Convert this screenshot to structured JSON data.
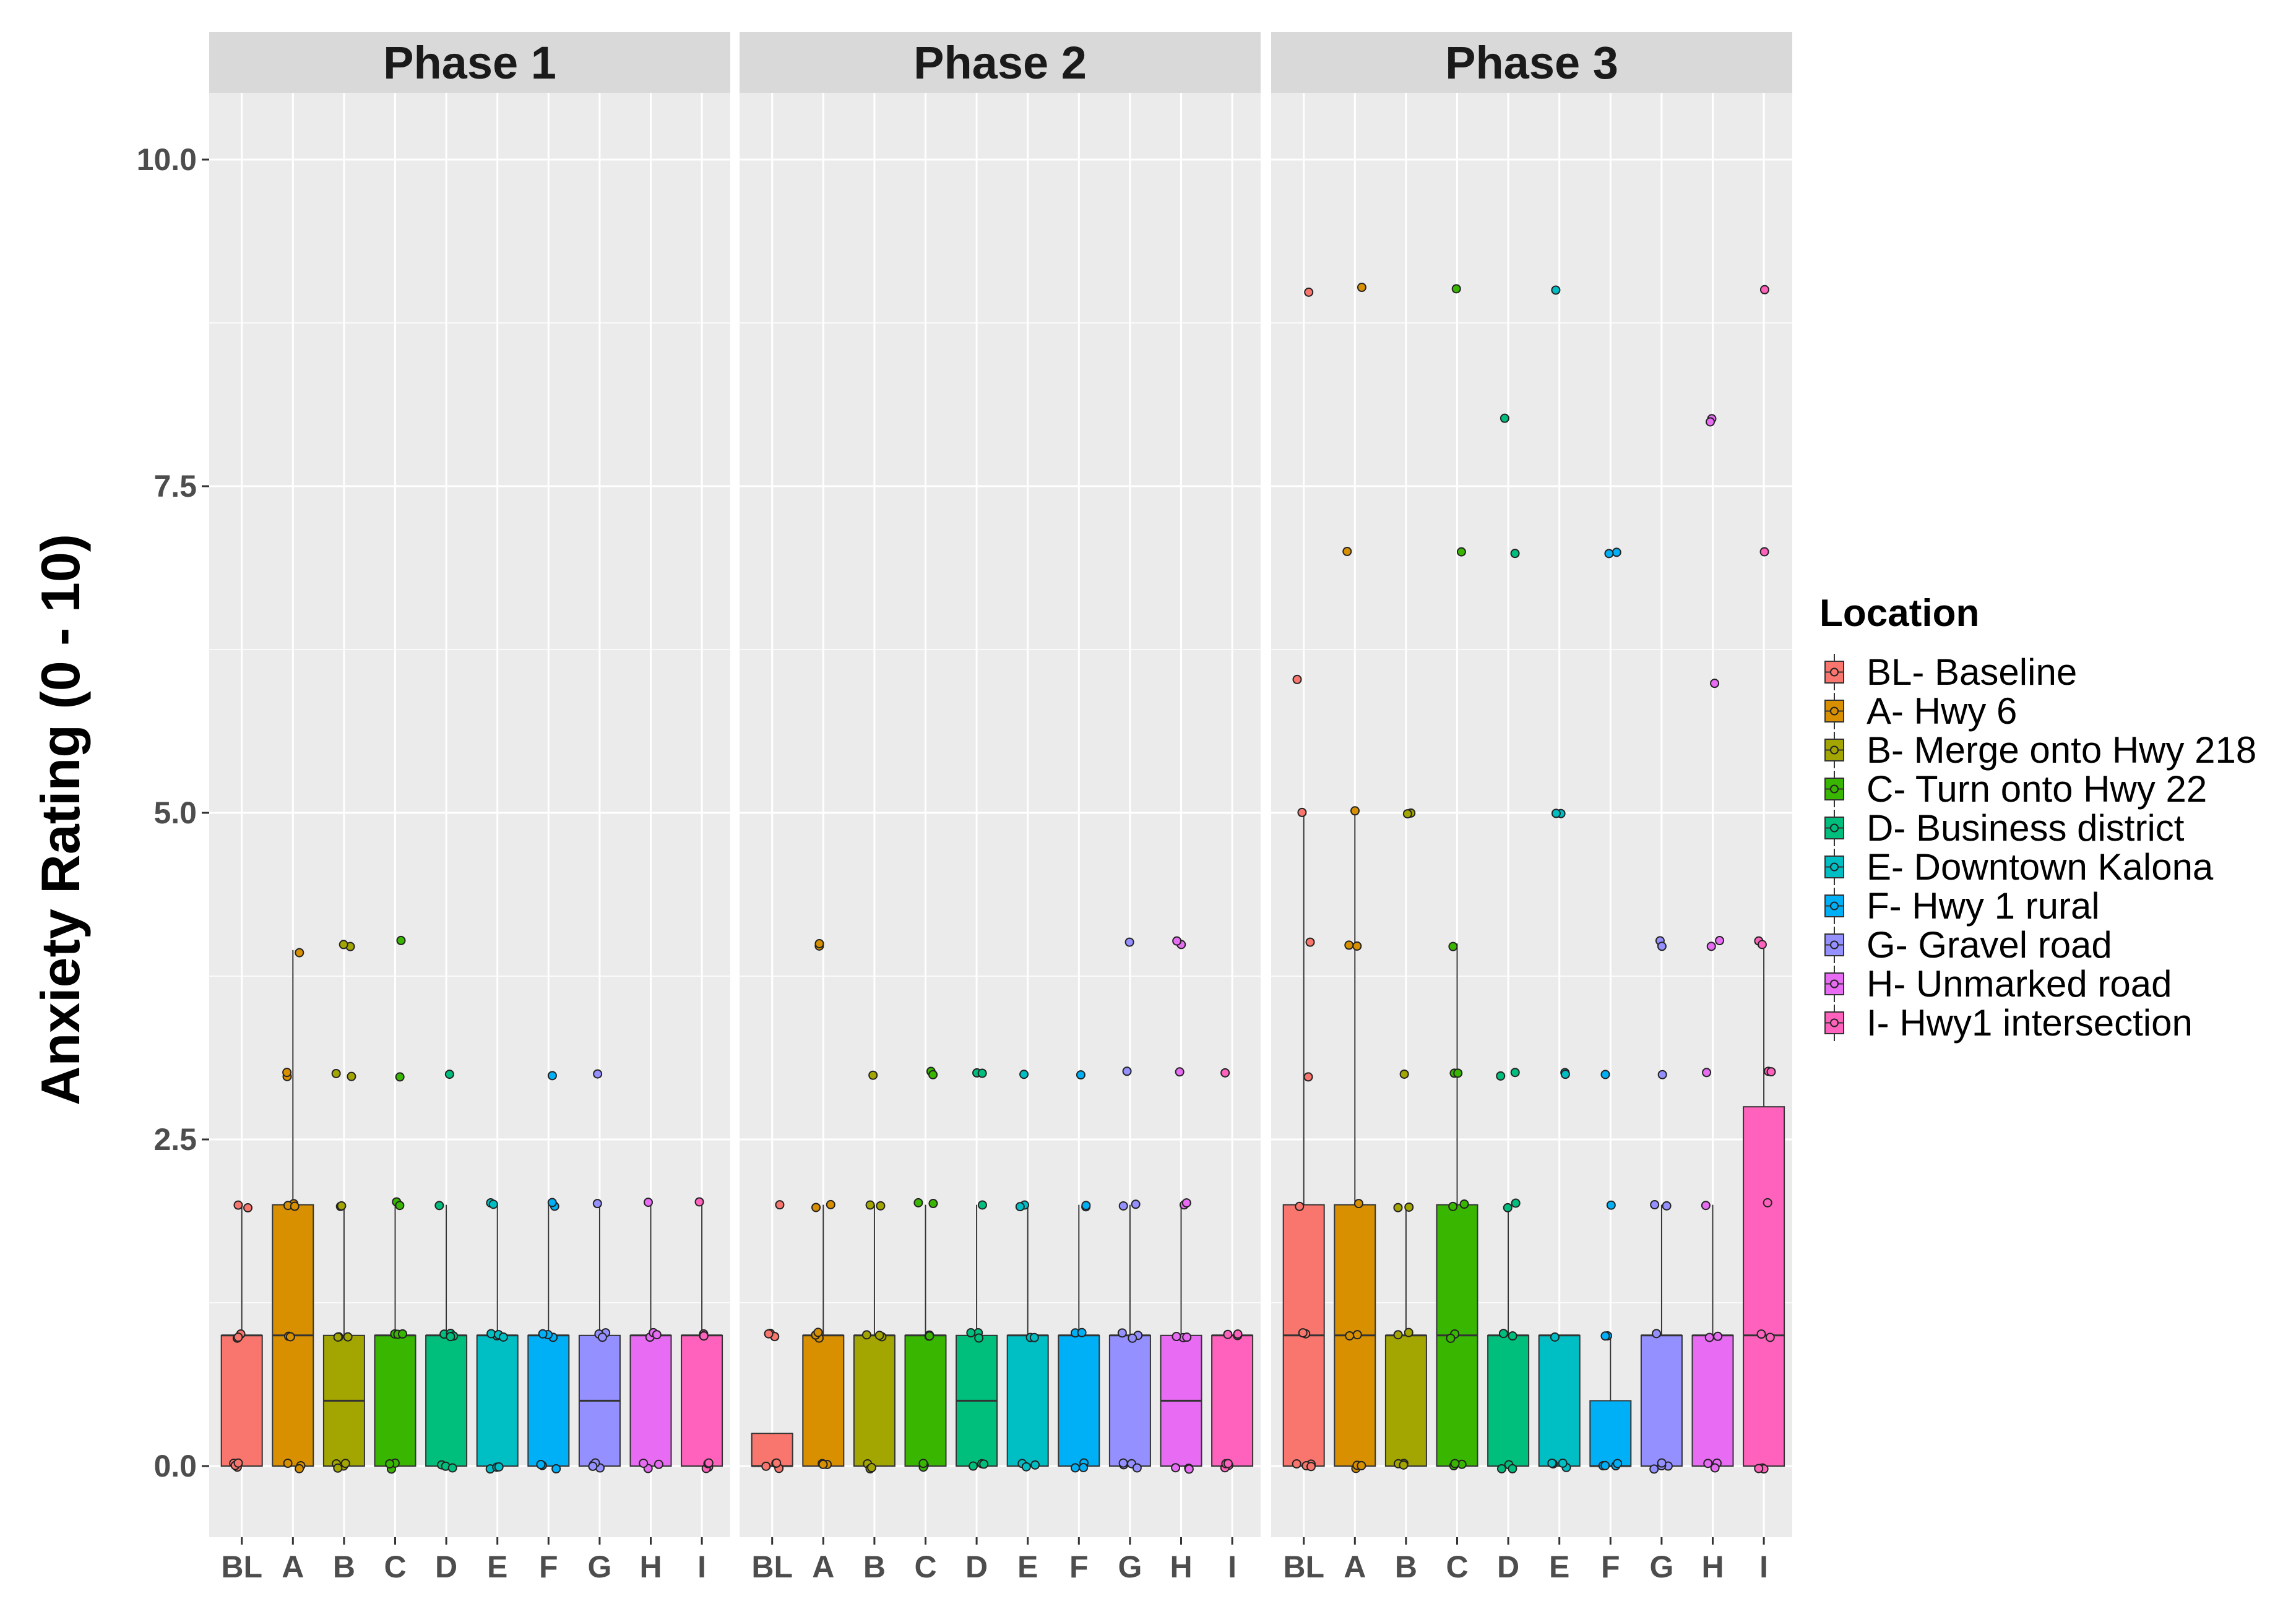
{
  "chart_data": {
    "type": "box",
    "ylabel": "Anxiety Rating (0 - 10)",
    "xlabel": "",
    "ylim": [
      -0.55,
      10.55
    ],
    "yticks": [
      0.0,
      2.5,
      5.0,
      7.5,
      10.0
    ],
    "ytick_labels": [
      "0.0",
      "2.5",
      "5.0",
      "7.5",
      "10.0"
    ],
    "categories": [
      "BL",
      "A",
      "B",
      "C",
      "D",
      "E",
      "F",
      "G",
      "H",
      "I"
    ],
    "grid": true,
    "legend_position": "right",
    "legend": {
      "title": "Location",
      "entries": [
        {
          "key": "BL",
          "label": "BL- Baseline",
          "color": "#F8766D"
        },
        {
          "key": "A",
          "label": "A- Hwy 6",
          "color": "#D89000"
        },
        {
          "key": "B",
          "label": "B- Merge onto Hwy 218",
          "color": "#A3A500"
        },
        {
          "key": "C",
          "label": "C- Turn onto Hwy 22",
          "color": "#39B600"
        },
        {
          "key": "D",
          "label": "D- Business district",
          "color": "#00BF7D"
        },
        {
          "key": "E",
          "label": "E- Downtown Kalona",
          "color": "#00BFC4"
        },
        {
          "key": "F",
          "label": "F- Hwy 1 rural",
          "color": "#00B0F6"
        },
        {
          "key": "G",
          "label": "G- Gravel road",
          "color": "#9590FF"
        },
        {
          "key": "H",
          "label": "H- Unmarked road",
          "color": "#E76BF3"
        },
        {
          "key": "I",
          "label": "I- Hwy1 intersection",
          "color": "#FF62BC"
        }
      ]
    },
    "panels": [
      {
        "title": "Phase 1",
        "boxes": [
          {
            "cat": "BL",
            "q1": 0,
            "median": 1,
            "q3": 1,
            "whisker_low": 0,
            "whisker_high": 2,
            "points": [
              0,
              0,
              0,
              0,
              1,
              1,
              1,
              2,
              2
            ]
          },
          {
            "cat": "A",
            "q1": 0,
            "median": 1,
            "q3": 2,
            "whisker_low": 0,
            "whisker_high": 3.95,
            "points": [
              0,
              0,
              0,
              1,
              1,
              2,
              2,
              2,
              3,
              3,
              3.95
            ]
          },
          {
            "cat": "B",
            "q1": 0,
            "median": 0.5,
            "q3": 1,
            "whisker_low": 0,
            "whisker_high": 2,
            "points": [
              0,
              0,
              0,
              0,
              1,
              1,
              1,
              2,
              2,
              3,
              3,
              4,
              4
            ]
          },
          {
            "cat": "C",
            "q1": 0,
            "median": 1,
            "q3": 1,
            "whisker_low": 0,
            "whisker_high": 2,
            "points": [
              0,
              0,
              0,
              1,
              1,
              1,
              2,
              2,
              3,
              4
            ]
          },
          {
            "cat": "D",
            "q1": 0,
            "median": 1,
            "q3": 1,
            "whisker_low": 0,
            "whisker_high": 2,
            "points": [
              0,
              0,
              0,
              1,
              1,
              1,
              1,
              2,
              3
            ]
          },
          {
            "cat": "E",
            "q1": 0,
            "median": 1,
            "q3": 1,
            "whisker_low": 0,
            "whisker_high": 2,
            "points": [
              0,
              0,
              0,
              1,
              1,
              1,
              1,
              2,
              2
            ]
          },
          {
            "cat": "F",
            "q1": 0,
            "median": 1,
            "q3": 1,
            "whisker_low": 0,
            "whisker_high": 2,
            "points": [
              0,
              0,
              0,
              1,
              1,
              1,
              2,
              2,
              3
            ]
          },
          {
            "cat": "G",
            "q1": 0,
            "median": 0.5,
            "q3": 1,
            "whisker_low": 0,
            "whisker_high": 2,
            "points": [
              0,
              0,
              0,
              0,
              1,
              1,
              1,
              2,
              3
            ]
          },
          {
            "cat": "H",
            "q1": 0,
            "median": 1,
            "q3": 1,
            "whisker_low": 0,
            "whisker_high": 2,
            "points": [
              0,
              0,
              0,
              1,
              1,
              1,
              2
            ]
          },
          {
            "cat": "I",
            "q1": 0,
            "median": 1,
            "q3": 1,
            "whisker_low": 0,
            "whisker_high": 2,
            "points": [
              0,
              0,
              0,
              0,
              1,
              1,
              1,
              2
            ]
          }
        ]
      },
      {
        "title": "Phase 2",
        "boxes": [
          {
            "cat": "BL",
            "q1": 0,
            "median": 0,
            "q3": 0.25,
            "whisker_low": 0,
            "whisker_high": 0.25,
            "points": [
              0,
              0,
              0,
              0,
              1,
              1,
              1,
              2
            ]
          },
          {
            "cat": "A",
            "q1": 0,
            "median": 1,
            "q3": 1,
            "whisker_low": 0,
            "whisker_high": 2,
            "points": [
              0,
              0,
              0,
              1,
              1,
              1,
              2,
              2,
              4,
              4
            ]
          },
          {
            "cat": "B",
            "q1": 0,
            "median": 1,
            "q3": 1,
            "whisker_low": 0,
            "whisker_high": 2,
            "points": [
              0,
              0,
              0,
              1,
              1,
              1,
              2,
              2,
              3
            ]
          },
          {
            "cat": "C",
            "q1": 0,
            "median": 1,
            "q3": 1,
            "whisker_low": 0,
            "whisker_high": 2,
            "points": [
              0,
              0,
              0,
              1,
              1,
              1,
              2,
              2,
              3,
              3
            ]
          },
          {
            "cat": "D",
            "q1": 0,
            "median": 0.5,
            "q3": 1,
            "whisker_low": 0,
            "whisker_high": 2,
            "points": [
              0,
              0,
              0,
              1,
              1,
              1,
              2,
              3,
              3
            ]
          },
          {
            "cat": "E",
            "q1": 0,
            "median": 1,
            "q3": 1,
            "whisker_low": 0,
            "whisker_high": 2,
            "points": [
              0,
              0,
              0,
              1,
              1,
              2,
              2,
              3
            ]
          },
          {
            "cat": "F",
            "q1": 0,
            "median": 1,
            "q3": 1,
            "whisker_low": 0,
            "whisker_high": 2,
            "points": [
              0,
              0,
              0,
              1,
              1,
              2,
              2,
              3
            ]
          },
          {
            "cat": "G",
            "q1": 0,
            "median": 1,
            "q3": 1,
            "whisker_low": 0,
            "whisker_high": 2,
            "points": [
              0,
              0,
              0,
              0,
              1,
              1,
              1,
              2,
              2,
              3,
              4
            ]
          },
          {
            "cat": "H",
            "q1": 0,
            "median": 0.5,
            "q3": 1,
            "whisker_low": 0,
            "whisker_high": 2,
            "points": [
              0,
              0,
              0,
              1,
              1,
              1,
              2,
              2,
              3,
              4,
              4
            ]
          },
          {
            "cat": "I",
            "q1": 0,
            "median": 1,
            "q3": 1,
            "whisker_low": 0,
            "whisker_high": 1,
            "points": [
              0,
              0,
              0,
              0,
              1,
              1,
              1,
              3
            ]
          }
        ]
      },
      {
        "title": "Phase 3",
        "boxes": [
          {
            "cat": "BL",
            "q1": 0,
            "median": 1,
            "q3": 2,
            "whisker_low": 0,
            "whisker_high": 5,
            "points": [
              0,
              0,
              0,
              0,
              1,
              1,
              2,
              3,
              4,
              5,
              6,
              9
            ]
          },
          {
            "cat": "A",
            "q1": 0,
            "median": 1,
            "q3": 2,
            "whisker_low": 0,
            "whisker_high": 5,
            "points": [
              0,
              0,
              0,
              1,
              1,
              2,
              4,
              4,
              5,
              7,
              9
            ]
          },
          {
            "cat": "B",
            "q1": 0,
            "median": 1,
            "q3": 1,
            "whisker_low": 0,
            "whisker_high": 2,
            "points": [
              0,
              0,
              0,
              1,
              1,
              2,
              2,
              3,
              5,
              5
            ]
          },
          {
            "cat": "C",
            "q1": 0,
            "median": 1,
            "q3": 2,
            "whisker_low": 0,
            "whisker_high": 4,
            "points": [
              0,
              0,
              0,
              1,
              1,
              2,
              2,
              3,
              3,
              4,
              7,
              9
            ]
          },
          {
            "cat": "D",
            "q1": 0,
            "median": 1,
            "q3": 1,
            "whisker_low": 0,
            "whisker_high": 2,
            "points": [
              0,
              0,
              0,
              1,
              1,
              2,
              2,
              3,
              3,
              7,
              8
            ]
          },
          {
            "cat": "E",
            "q1": 0,
            "median": 1,
            "q3": 1,
            "whisker_low": 0,
            "whisker_high": 1,
            "points": [
              0,
              0,
              0,
              0,
              1,
              3,
              3,
              5,
              5,
              9
            ]
          },
          {
            "cat": "F",
            "q1": 0,
            "median": 0,
            "q3": 0.5,
            "whisker_low": 0,
            "whisker_high": 1,
            "points": [
              0,
              0,
              0,
              0,
              1,
              1,
              2,
              3,
              7,
              7
            ]
          },
          {
            "cat": "G",
            "q1": 0,
            "median": 1,
            "q3": 1,
            "whisker_low": 0,
            "whisker_high": 2,
            "points": [
              0,
              0,
              0,
              0,
              1,
              2,
              2,
              3,
              4,
              4
            ]
          },
          {
            "cat": "H",
            "q1": 0,
            "median": 1,
            "q3": 1,
            "whisker_low": 0,
            "whisker_high": 2,
            "points": [
              0,
              0,
              0,
              1,
              1,
              2,
              3,
              4,
              4,
              6,
              8,
              8
            ]
          },
          {
            "cat": "I",
            "q1": 0,
            "median": 1,
            "q3": 2.75,
            "whisker_low": 0,
            "whisker_high": 4,
            "points": [
              0,
              0,
              0,
              1,
              1,
              2,
              3,
              3,
              4,
              4,
              7,
              9
            ]
          }
        ]
      }
    ]
  }
}
